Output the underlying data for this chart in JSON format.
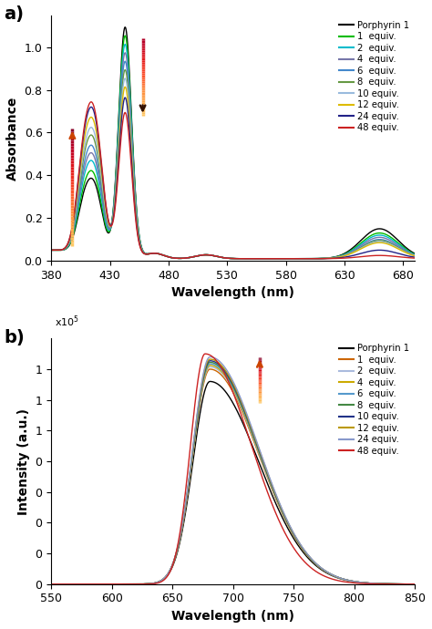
{
  "panel_a": {
    "xlabel": "Wavelength (nm)",
    "ylabel": "Absorbance",
    "xlim": [
      380,
      690
    ],
    "ylim": [
      0.0,
      1.15
    ],
    "yticks": [
      0.0,
      0.2,
      0.4,
      0.6,
      0.8,
      1.0
    ],
    "xticks": [
      380,
      430,
      480,
      530,
      580,
      630,
      680
    ],
    "series": [
      {
        "label": "Porphyrin 1",
        "color": "#000000",
        "soret_amp": 1.08,
        "q1_amp": 0.3,
        "q2_amp": 0.08,
        "vis_amp": 0.14
      },
      {
        "label": "1  equiv.",
        "color": "#00bb00",
        "soret_amp": 1.04,
        "q1_amp": 0.33,
        "q2_amp": 0.09,
        "vis_amp": 0.12
      },
      {
        "label": "2  equiv.",
        "color": "#00bbcc",
        "soret_amp": 1.0,
        "q1_amp": 0.37,
        "q2_amp": 0.1,
        "vis_amp": 0.11
      },
      {
        "label": "4  equiv.",
        "color": "#7777aa",
        "soret_amp": 0.96,
        "q1_amp": 0.4,
        "q2_amp": 0.11,
        "vis_amp": 0.1
      },
      {
        "label": "6  equiv.",
        "color": "#4488cc",
        "soret_amp": 0.92,
        "q1_amp": 0.43,
        "q2_amp": 0.12,
        "vis_amp": 0.09
      },
      {
        "label": "8  equiv.",
        "color": "#669944",
        "soret_amp": 0.88,
        "q1_amp": 0.47,
        "q2_amp": 0.13,
        "vis_amp": 0.085
      },
      {
        "label": "10 equiv.",
        "color": "#99bbdd",
        "soret_amp": 0.84,
        "q1_amp": 0.5,
        "q2_amp": 0.14,
        "vis_amp": 0.08
      },
      {
        "label": "12 equiv.",
        "color": "#ddbb00",
        "soret_amp": 0.8,
        "q1_amp": 0.54,
        "q2_amp": 0.15,
        "vis_amp": 0.075
      },
      {
        "label": "24 equiv.",
        "color": "#222288",
        "soret_amp": 0.75,
        "q1_amp": 0.58,
        "q2_amp": 0.18,
        "vis_amp": 0.04
      },
      {
        "label": "48 equiv.",
        "color": "#cc2222",
        "soret_amp": 0.68,
        "q1_amp": 0.6,
        "q2_amp": 0.26,
        "vis_amp": 0.015
      }
    ]
  },
  "panel_b": {
    "xlabel": "Wavelength (nm)",
    "ylabel": "Intensity (a.u.)",
    "xlim": [
      550,
      850
    ],
    "ylim": [
      0,
      160000
    ],
    "yticks": [
      0,
      20000,
      40000,
      60000,
      80000,
      100000,
      120000,
      140000
    ],
    "xticks": [
      550,
      600,
      650,
      700,
      750,
      800,
      850
    ],
    "series": [
      {
        "label": "Porphyrin 1",
        "color": "#000000",
        "peak": 681,
        "amp": 132000,
        "wl": 14,
        "wr": 40
      },
      {
        "label": "1  equiv.",
        "color": "#cc6600",
        "peak": 681,
        "amp": 140000,
        "wl": 14,
        "wr": 40
      },
      {
        "label": "2  equiv.",
        "color": "#aabbdd",
        "peak": 681,
        "amp": 141500,
        "wl": 14,
        "wr": 40
      },
      {
        "label": "4  equiv.",
        "color": "#ccaa00",
        "peak": 681,
        "amp": 142500,
        "wl": 14,
        "wr": 40
      },
      {
        "label": "6  equiv.",
        "color": "#5599cc",
        "peak": 681,
        "amp": 143500,
        "wl": 14,
        "wr": 40
      },
      {
        "label": "8  equiv.",
        "color": "#448844",
        "peak": 681,
        "amp": 144500,
        "wl": 14,
        "wr": 40
      },
      {
        "label": "10 equiv.",
        "color": "#223388",
        "peak": 681,
        "amp": 145500,
        "wl": 14,
        "wr": 40
      },
      {
        "label": "12 equiv.",
        "color": "#bb9900",
        "peak": 681,
        "amp": 146500,
        "wl": 14,
        "wr": 40
      },
      {
        "label": "24 equiv.",
        "color": "#8899cc",
        "peak": 681,
        "amp": 148000,
        "wl": 14,
        "wr": 40
      },
      {
        "label": "48 equiv.",
        "color": "#cc2222",
        "peak": 677,
        "amp": 150000,
        "wl": 12,
        "wr": 38
      }
    ]
  }
}
